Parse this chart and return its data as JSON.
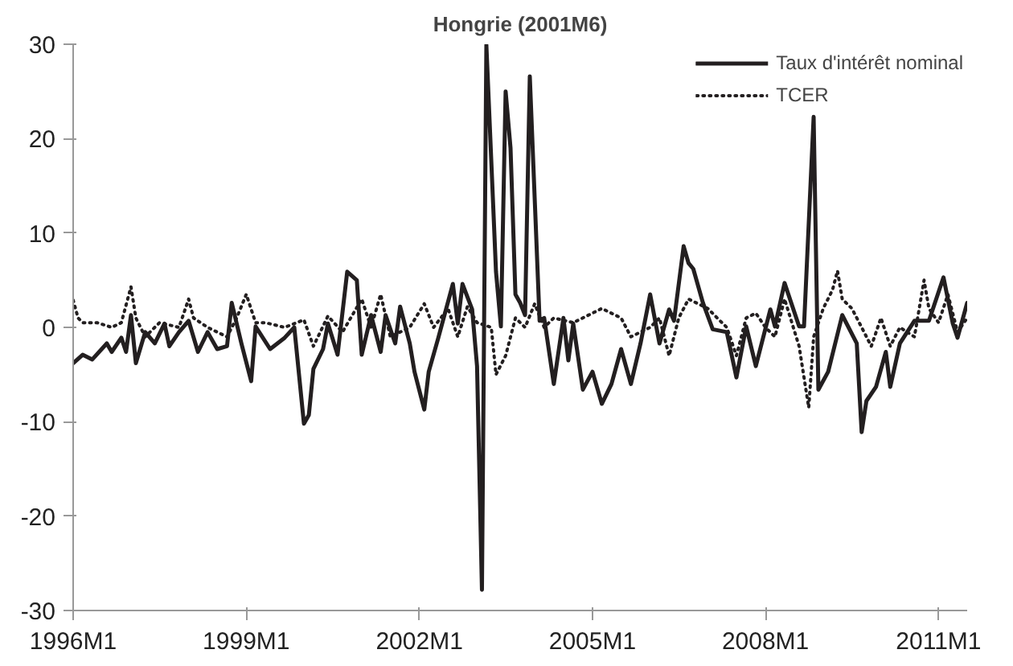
{
  "chart_data": {
    "type": "line",
    "title": "Hongrie (2001M6)",
    "xlim": [
      "1996-01",
      "2011-07"
    ],
    "xticks": [
      {
        "value": "1996-01",
        "label": "1996M1"
      },
      {
        "value": "1999-01",
        "label": "1999M1"
      },
      {
        "value": "2002-01",
        "label": "2002M1"
      },
      {
        "value": "2005-01",
        "label": "2005M1"
      },
      {
        "value": "2008-01",
        "label": "2008M1"
      },
      {
        "value": "2011-01",
        "label": "2011M1"
      }
    ],
    "ylim": [
      -30,
      30
    ],
    "yticks": [
      -30,
      -20,
      -10,
      0,
      10,
      20,
      30
    ],
    "grid": false,
    "legend": "top right",
    "series": [
      {
        "name": "Taux d'intérêt nominal",
        "color": "#231f20",
        "line_style": "solid",
        "x": [
          "1996-01",
          "1996-03",
          "1996-05",
          "1996-08",
          "1996-09",
          "1996-11",
          "1996-12",
          "1997-01",
          "1997-02",
          "1997-04",
          "1997-06",
          "1997-08",
          "1997-09",
          "1997-11",
          "1998-01",
          "1998-03",
          "1998-05",
          "1998-07",
          "1998-09",
          "1998-10",
          "1998-12",
          "1999-02",
          "1999-03",
          "1999-06",
          "1999-09",
          "1999-11",
          "2000-01",
          "2000-02",
          "2000-03",
          "2000-05",
          "2000-06",
          "2000-08",
          "2000-10",
          "2000-12",
          "2001-01",
          "2001-03",
          "2001-05",
          "2001-06",
          "2001-08",
          "2001-09",
          "2001-11",
          "2001-12",
          "2002-02",
          "2002-03",
          "2002-05",
          "2002-08",
          "2002-09",
          "2002-10",
          "2002-12",
          "2003-01",
          "2003-02",
          "2003-03",
          "2003-05",
          "2003-06",
          "2003-07",
          "2003-08",
          "2003-09",
          "2003-10",
          "2003-11",
          "2003-12",
          "2004-02",
          "2004-03",
          "2004-05",
          "2004-07",
          "2004-08",
          "2004-09",
          "2004-11",
          "2005-01",
          "2005-03",
          "2005-05",
          "2005-07",
          "2005-09",
          "2005-11",
          "2006-01",
          "2006-03",
          "2006-05",
          "2006-06",
          "2006-08",
          "2006-09",
          "2006-10",
          "2006-12",
          "2007-02",
          "2007-05",
          "2007-07",
          "2007-09",
          "2007-11",
          "2008-02",
          "2008-03",
          "2008-05",
          "2008-08",
          "2008-09",
          "2008-11",
          "2008-12",
          "2009-02",
          "2009-05",
          "2009-08",
          "2009-09",
          "2009-10",
          "2009-12",
          "2010-02",
          "2010-03",
          "2010-05",
          "2010-08",
          "2010-11",
          "2011-02",
          "2011-04",
          "2011-05",
          "2011-07"
        ],
        "values": [
          -3.8,
          -2.9,
          -3.4,
          -1.7,
          -2.6,
          -1.1,
          -2.6,
          1.3,
          -3.8,
          -0.5,
          -1.7,
          0.4,
          -2,
          -0.5,
          0.7,
          -2.6,
          -0.5,
          -2.3,
          -2,
          2.6,
          -1.7,
          -5.7,
          0.1,
          -2.3,
          -1.1,
          0,
          -10.2,
          -9.3,
          -4.4,
          -2.3,
          0.4,
          -2.9,
          5.9,
          5,
          -2.9,
          1.3,
          -2.6,
          1.3,
          -1.7,
          2.2,
          -1.7,
          -4.7,
          -8.7,
          -4.7,
          -1.1,
          4.6,
          0.4,
          4.6,
          1.9,
          -4.1,
          -27.8,
          29.9,
          5.9,
          0.1,
          25,
          19,
          3.5,
          2.6,
          1.3,
          26.6,
          0.7,
          1,
          -6,
          1,
          -3.5,
          0.4,
          -6.6,
          -4.7,
          -8.1,
          -6,
          -2.3,
          -6,
          -1.7,
          3.5,
          -1.7,
          1.9,
          0.7,
          8.6,
          6.8,
          6.2,
          2.6,
          -0.2,
          -0.5,
          -5.3,
          0.1,
          -4.1,
          1.9,
          0.1,
          4.7,
          0.1,
          0.1,
          22.3,
          -6.6,
          -4.7,
          1.3,
          -1.7,
          -11.1,
          -7.8,
          -6.3,
          -2.6,
          -6.3,
          -1.7,
          0.7,
          0.7,
          5.3,
          0.4,
          -1.1,
          2.6
        ]
      },
      {
        "name": "TCER",
        "color": "#231f20",
        "line_style": "dotted",
        "x": [
          "1996-01",
          "1996-02",
          "1996-03",
          "1996-06",
          "1996-09",
          "1996-11",
          "1997-01",
          "1997-02",
          "1997-04",
          "1997-07",
          "1997-11",
          "1998-01",
          "1998-02",
          "1998-05",
          "1998-09",
          "1998-11",
          "1999-01",
          "1999-03",
          "1999-05",
          "1999-09",
          "2000-01",
          "2000-03",
          "2000-06",
          "2000-09",
          "2001-01",
          "2001-03",
          "2001-05",
          "2001-07",
          "2001-11",
          "2002-02",
          "2002-04",
          "2002-07",
          "2002-09",
          "2002-11",
          "2003-01",
          "2003-04",
          "2003-05",
          "2003-07",
          "2003-09",
          "2003-11",
          "2004-01",
          "2004-03",
          "2004-05",
          "2004-09",
          "2005-03",
          "2005-07",
          "2005-09",
          "2006-01",
          "2006-03",
          "2006-05",
          "2006-07",
          "2006-09",
          "2007-01",
          "2007-03",
          "2007-05",
          "2007-07",
          "2007-09",
          "2007-11",
          "2008-01",
          "2008-03",
          "2008-05",
          "2008-08",
          "2008-10",
          "2008-11",
          "2009-01",
          "2009-03",
          "2009-04",
          "2009-05",
          "2009-07",
          "2009-09",
          "2009-11",
          "2010-01",
          "2010-03",
          "2010-05",
          "2010-08",
          "2010-10",
          "2010-11",
          "2011-01",
          "2011-03",
          "2011-05",
          "2011-07"
        ],
        "values": [
          2.9,
          1,
          0.5,
          0.5,
          0,
          0.5,
          4.3,
          1,
          -1,
          0.5,
          0,
          3,
          1,
          0,
          -1,
          1,
          3.5,
          0.5,
          0.5,
          0,
          0.8,
          -2,
          1.2,
          -0.5,
          3,
          0,
          3.5,
          -1,
          0,
          2.5,
          0,
          2,
          -1,
          2.2,
          0.5,
          0,
          -5,
          -3,
          1,
          0,
          2.5,
          0,
          1,
          0.5,
          2,
          1,
          -1,
          0,
          1,
          -3,
          1,
          3,
          2,
          1,
          0,
          -3,
          1,
          1.5,
          0,
          -1,
          3,
          -2,
          -8.5,
          -1,
          2,
          4,
          6,
          3,
          2,
          0,
          -2,
          1,
          -2,
          0,
          -1,
          5,
          2,
          0.5,
          3.5,
          -0.5,
          1
        ]
      }
    ]
  }
}
